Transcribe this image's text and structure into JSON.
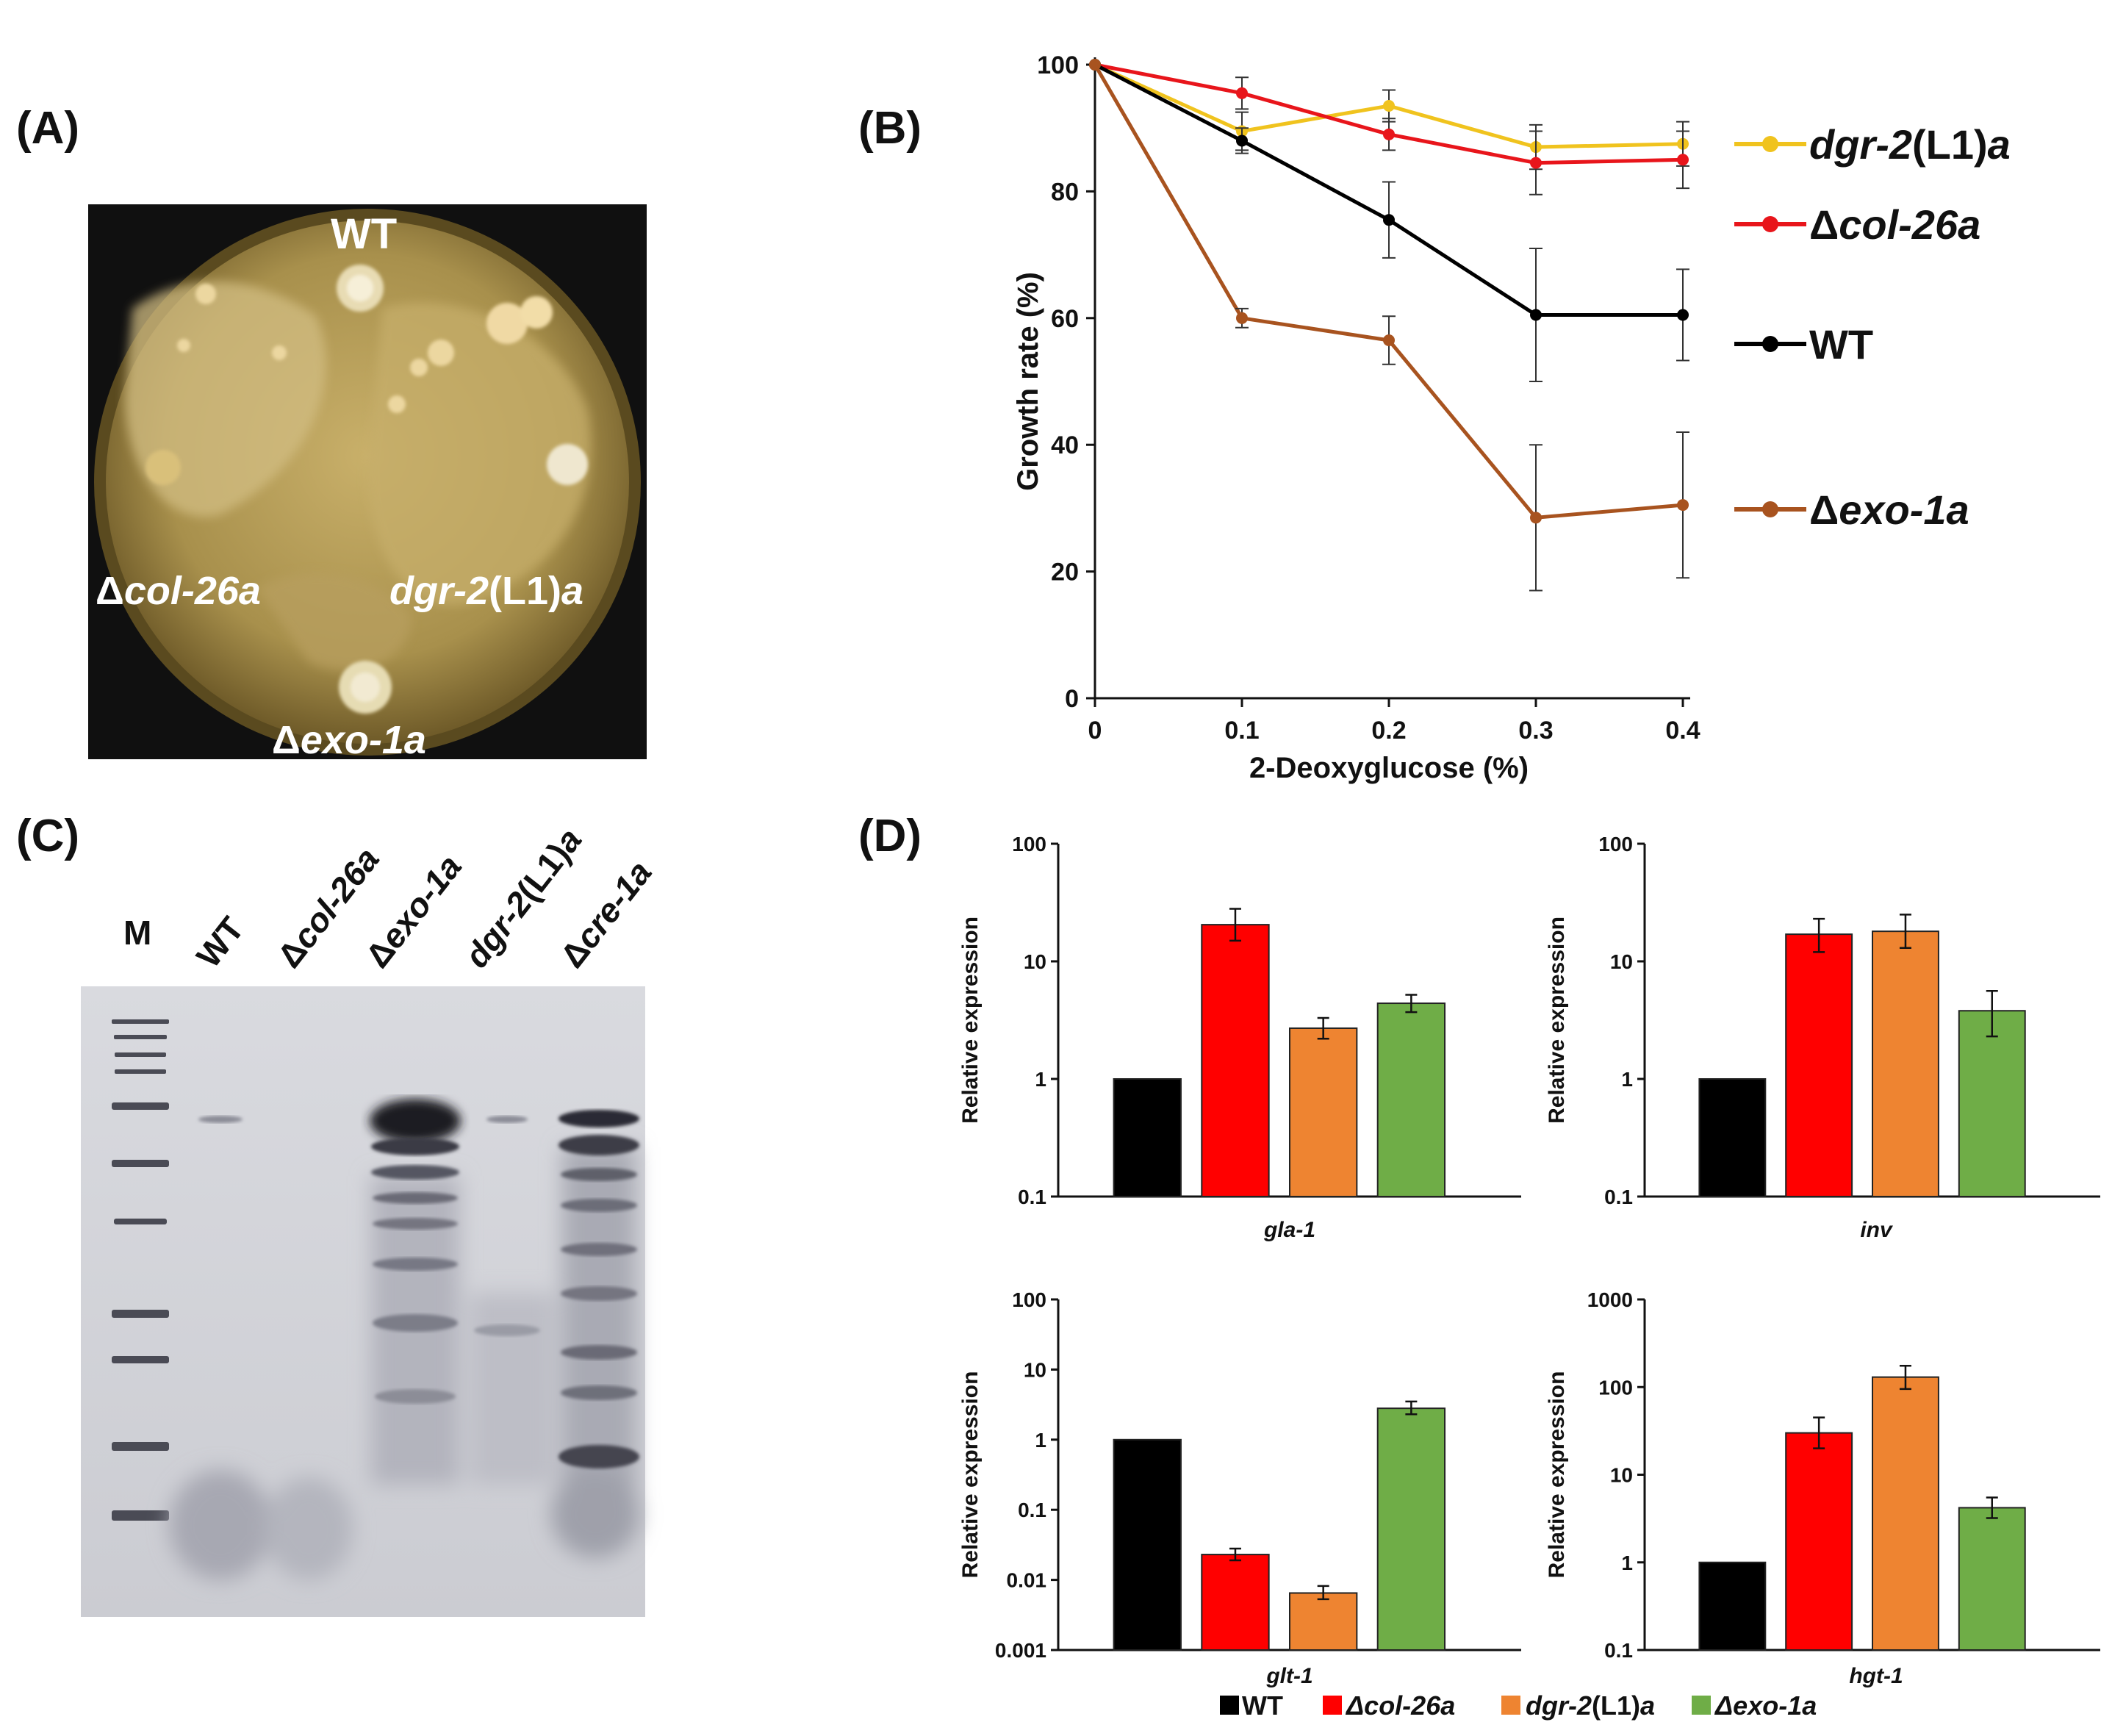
{
  "panels": {
    "A": "(A)",
    "B": "(B)",
    "C": "(C)",
    "D": "(D)"
  },
  "panel_a": {
    "labels": {
      "wt": "WT",
      "col26_delta": "Δ",
      "col26_name": "col-26a",
      "dgr_name": "dgr-2",
      "dgr_mid": "(L1)",
      "dgr_suffix": "a",
      "exo_delta": "Δ",
      "exo_name": "exo-1a"
    }
  },
  "panel_c": {
    "marker_label": "M",
    "lanes": {
      "wt": "WT",
      "col_delta": "Δ",
      "col_name": "col-26a",
      "exo_delta": "Δ",
      "exo_name": "exo-1a",
      "dgr_name": "dgr-2",
      "dgr_mid": "(L1)",
      "dgr_suffix": "a",
      "cre_delta": "Δ",
      "cre_name": "cre-1a"
    }
  },
  "legend_d": {
    "wt": "WT",
    "col_delta": "Δ",
    "col_name": "col-26a",
    "dgr_name": "dgr-2",
    "dgr_mid": "(L1)",
    "dgr_suffix": "a",
    "exo_delta": "Δ",
    "exo_name": "exo-1a"
  },
  "colors": {
    "wt": "#000000",
    "col26": "#e8151b",
    "dgr2": "#f0c31e",
    "exo1": "#a8531f",
    "bar_wt": "#000000",
    "bar_col26": "#ff0000",
    "bar_dgr2": "#ee8431",
    "bar_exo1": "#6fad47"
  },
  "chart_data": [
    {
      "id": "B",
      "type": "line",
      "xlabel": "2-Deoxyglucose (%)",
      "ylabel": "Growth rate (%)",
      "x": [
        0,
        0.1,
        0.2,
        0.3,
        0.4
      ],
      "x_tick_labels": [
        "0",
        "0.1",
        "0.2",
        "0.3",
        "0.4"
      ],
      "ylim": [
        0,
        100
      ],
      "y_ticks": [
        0,
        20,
        40,
        60,
        80,
        100
      ],
      "series": [
        {
          "key": "dgr2",
          "name_italic": "dgr-2",
          "name_plain": "(L1)",
          "name_italic2": "a",
          "values": [
            100,
            89.5,
            93.5,
            87,
            87.5
          ],
          "errors": [
            0,
            3,
            2.5,
            3.5,
            3.5
          ]
        },
        {
          "key": "col26",
          "name_plain": "Δ",
          "name_italic": "col-26a",
          "values": [
            100,
            95.5,
            89,
            84.5,
            85
          ],
          "errors": [
            0,
            2.5,
            2.5,
            5,
            4.5
          ]
        },
        {
          "key": "wt",
          "name_plain": "WT",
          "values": [
            100,
            88,
            75.5,
            60.5,
            60.5
          ],
          "errors": [
            0,
            2,
            6,
            10.5,
            7.2
          ]
        },
        {
          "key": "exo1",
          "name_plain": "Δ",
          "name_italic": "exo-1a",
          "values": [
            100,
            60,
            56.5,
            28.5,
            30.5
          ],
          "errors": [
            0,
            1.5,
            3.8,
            11.5,
            11.5
          ]
        }
      ]
    },
    {
      "id": "D1",
      "type": "bar",
      "scale": "log",
      "gene": "gla-1",
      "ylabel": "Relative expression",
      "categories": [
        "WT",
        "Δcol-26a",
        "dgr-2(L1)a",
        "Δexo-1a"
      ],
      "values": [
        1,
        20.5,
        2.7,
        4.4
      ],
      "err_high": [
        1,
        28,
        3.3,
        5.2
      ],
      "err_low": [
        1,
        15,
        2.2,
        3.7
      ],
      "ylim": [
        0.1,
        100
      ],
      "y_ticks": [
        "0.1",
        "1",
        "10",
        "100"
      ]
    },
    {
      "id": "D2",
      "type": "bar",
      "scale": "log",
      "gene": "inv",
      "ylabel": "Relative expression",
      "categories": [
        "WT",
        "Δcol-26a",
        "dgr-2(L1)a",
        "Δexo-1a"
      ],
      "values": [
        1,
        17,
        18,
        3.8
      ],
      "err_high": [
        1,
        23,
        25,
        5.6
      ],
      "err_low": [
        1,
        12,
        13,
        2.3
      ],
      "ylim": [
        0.1,
        100
      ],
      "y_ticks": [
        "0.1",
        "1",
        "10",
        "100"
      ]
    },
    {
      "id": "D3",
      "type": "bar",
      "scale": "log",
      "gene": "glt-1",
      "ylabel": "Relative expression",
      "categories": [
        "WT",
        "Δcol-26a",
        "dgr-2(L1)a",
        "Δexo-1a"
      ],
      "values": [
        1,
        0.023,
        0.0065,
        2.8
      ],
      "err_high": [
        1,
        0.028,
        0.0082,
        3.5
      ],
      "err_low": [
        1,
        0.019,
        0.0053,
        2.3
      ],
      "ylim": [
        0.001,
        100
      ],
      "y_ticks": [
        "0.001",
        "0.01",
        "0.1",
        "1",
        "10",
        "100"
      ]
    },
    {
      "id": "D4",
      "type": "bar",
      "scale": "log",
      "gene": "hgt-1",
      "ylabel": "Relative expression",
      "categories": [
        "WT",
        "Δcol-26a",
        "dgr-2(L1)a",
        "Δexo-1a"
      ],
      "values": [
        1,
        30,
        130,
        4.2
      ],
      "err_high": [
        1,
        45,
        175,
        5.5
      ],
      "err_low": [
        1,
        20,
        95,
        3.2
      ],
      "ylim": [
        0.1,
        1000
      ],
      "y_ticks": [
        "0.1",
        "1",
        "10",
        "100",
        "1000"
      ]
    }
  ]
}
